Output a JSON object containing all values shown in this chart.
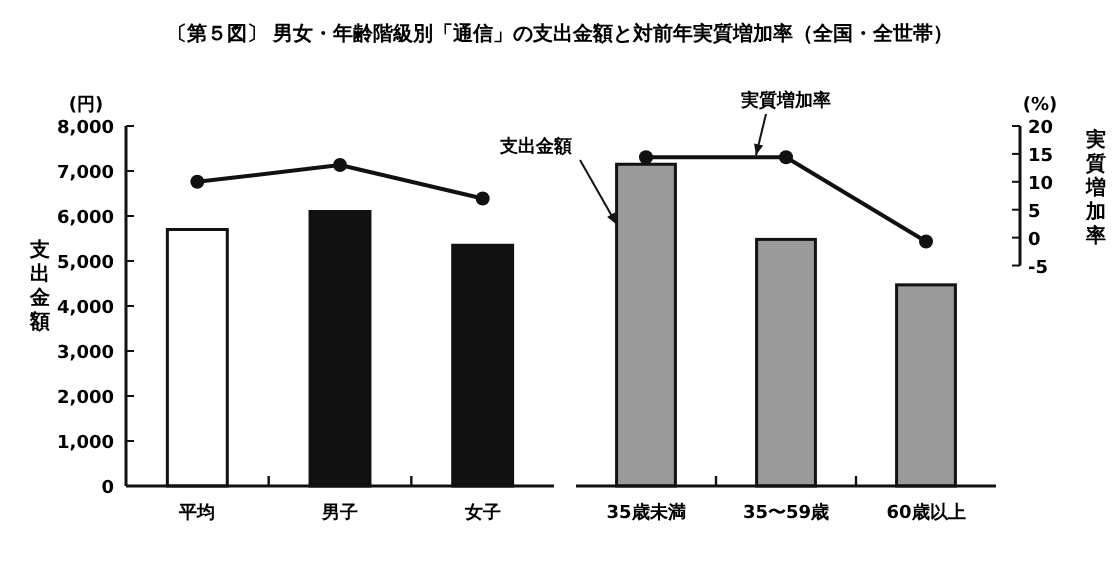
{
  "chart_data": [
    {
      "type": "bar",
      "title": "〔第５図〕 男女・年齢階級別「通信」の支出金額と対前年実質増加率（全国・全世帯）",
      "ylabel": "支出金額",
      "annotations": [
        "(円)"
      ],
      "categories": [
        "平均",
        "男子",
        "女子"
      ],
      "series": [
        {
          "colors": [
            "#ffffff",
            "#111111",
            "#111111"
          ],
          "values": [
            5700,
            6100,
            5350
          ]
        },
        {
          "type": "line",
          "axis": "y2",
          "color": "#111111",
          "values": [
            10,
            13,
            7
          ]
        }
      ],
      "ylim": [
        0,
        8000
      ],
      "yticks": [
        0,
        {
          "value": 1000,
          "label": "1,000"
        },
        {
          "value": 2000,
          "label": "2,000"
        },
        {
          "value": 3000,
          "label": "3,000"
        },
        {
          "value": 4000,
          "label": "4,000"
        },
        {
          "value": 5000,
          "label": "5,000"
        },
        {
          "value": 6000,
          "label": "6,000"
        },
        {
          "value": 7000,
          "label": "7,000"
        },
        {
          "value": 8000,
          "label": "8,000"
        }
      ],
      "y2lim": [
        -44.5,
        20
      ],
      "tick_labels": [
        "x",
        "y"
      ],
      "marker": "circle"
    },
    {
      "type": "bar",
      "y2label": "実質増加率",
      "annotations": [
        "(%)",
        "支出金額",
        "実質増加率"
      ],
      "categories": [
        "35歳未満",
        "35〜59歳",
        "60歳以上"
      ],
      "series": [
        {
          "colors": [
            "#9a9a9a",
            "#9a9a9a",
            "#9a9a9a"
          ],
          "values": [
            7150,
            5480,
            4470
          ]
        },
        {
          "type": "line",
          "axis": "y2",
          "color": "#111111",
          "values": [
            14.4,
            14.4,
            -0.7
          ]
        }
      ],
      "ylim": [
        0,
        8000
      ],
      "y2lim": [
        -44.5,
        20
      ],
      "y2ticks": [
        -5,
        0,
        5,
        10,
        15,
        20
      ],
      "tick_labels": [
        "x",
        "y2"
      ],
      "marker": "circle"
    }
  ]
}
